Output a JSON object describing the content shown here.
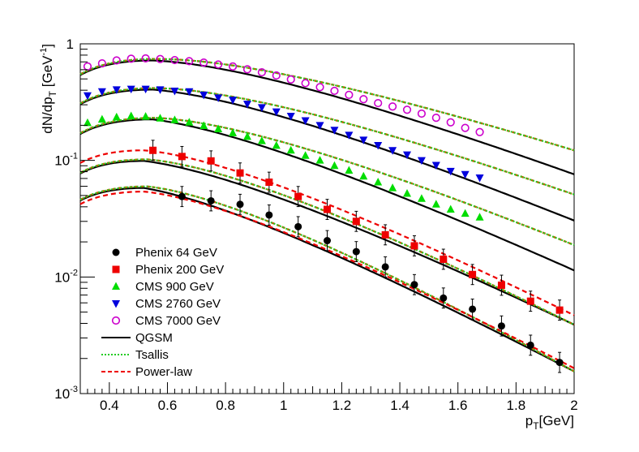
{
  "chart_data": {
    "type": "scatter",
    "title": "",
    "xlabel_main": "p",
    "xlabel_sub": "T",
    "xlabel_unit": "[GeV]",
    "ylabel_main": "dN/dp",
    "ylabel_sub": "T",
    "ylabel_unit": " [GeV",
    "ylabel_unit_exp": "-1",
    "ylabel_unit_close": "]",
    "xlim": [
      0.3,
      2.0
    ],
    "ylim": [
      0.001,
      1.0
    ],
    "yscale": "log",
    "x_ticks": [
      "0.4",
      "0.6",
      "0.8",
      "1",
      "1.2",
      "1.4",
      "1.6",
      "1.8",
      "2"
    ],
    "y_ticks": [
      {
        "base": "10",
        "exp": "-3"
      },
      {
        "base": "10",
        "exp": "-2"
      },
      {
        "base": "10",
        "exp": "-1"
      },
      {
        "base": "1",
        "exp": ""
      }
    ],
    "legend": [
      "Phenix 64 GeV",
      "Phenix 200 GeV",
      "CMS 900 GeV",
      "CMS 2760 GeV",
      "CMS 7000 GeV",
      "QGSM",
      "Tsallis",
      "Power-law"
    ],
    "legend_position": "lower-left",
    "series": [
      {
        "name": "Phenix 64 GeV",
        "marker": "circle",
        "color": "#000000",
        "x": [
          0.65,
          0.75,
          0.85,
          0.95,
          1.05,
          1.15,
          1.25,
          1.35,
          1.45,
          1.55,
          1.65,
          1.75,
          1.85,
          1.95
        ],
        "y": [
          0.049,
          0.045,
          0.042,
          0.034,
          0.027,
          0.0205,
          0.0165,
          0.0122,
          0.0086,
          0.0066,
          0.0053,
          0.0038,
          0.0026,
          0.00185
        ]
      },
      {
        "name": "Phenix 200 GeV",
        "marker": "square",
        "color": "#ee0000",
        "x": [
          0.55,
          0.65,
          0.75,
          0.85,
          0.95,
          1.05,
          1.15,
          1.25,
          1.35,
          1.45,
          1.55,
          1.65,
          1.75,
          1.85,
          1.95
        ],
        "y": [
          0.122,
          0.108,
          0.099,
          0.078,
          0.065,
          0.049,
          0.038,
          0.03,
          0.023,
          0.0185,
          0.0142,
          0.0105,
          0.0085,
          0.0062,
          0.0052
        ]
      },
      {
        "name": "CMS 900 GeV",
        "marker": "triangle-up",
        "color": "#00dd00",
        "x": [
          0.325,
          0.375,
          0.425,
          0.475,
          0.525,
          0.575,
          0.625,
          0.675,
          0.725,
          0.775,
          0.825,
          0.875,
          0.925,
          0.975,
          1.025,
          1.075,
          1.125,
          1.175,
          1.225,
          1.275,
          1.325,
          1.375,
          1.425,
          1.475,
          1.525,
          1.575,
          1.625,
          1.675
        ],
        "y": [
          0.21,
          0.225,
          0.235,
          0.24,
          0.238,
          0.23,
          0.222,
          0.212,
          0.198,
          0.186,
          0.172,
          0.16,
          0.147,
          0.134,
          0.122,
          0.11,
          0.1,
          0.09,
          0.082,
          0.073,
          0.065,
          0.058,
          0.052,
          0.047,
          0.042,
          0.038,
          0.035,
          0.0325
        ]
      },
      {
        "name": "CMS 2760 GeV",
        "marker": "triangle-down",
        "color": "#0000dd",
        "x": [
          0.325,
          0.375,
          0.425,
          0.475,
          0.525,
          0.575,
          0.625,
          0.675,
          0.725,
          0.775,
          0.825,
          0.875,
          0.925,
          0.975,
          1.025,
          1.075,
          1.125,
          1.175,
          1.225,
          1.275,
          1.325,
          1.375,
          1.425,
          1.475,
          1.525,
          1.575,
          1.625,
          1.675
        ],
        "y": [
          0.36,
          0.39,
          0.405,
          0.41,
          0.41,
          0.405,
          0.395,
          0.39,
          0.365,
          0.345,
          0.33,
          0.305,
          0.285,
          0.262,
          0.24,
          0.22,
          0.2,
          0.182,
          0.165,
          0.15,
          0.135,
          0.122,
          0.112,
          0.1,
          0.091,
          0.081,
          0.076,
          0.071
        ]
      },
      {
        "name": "CMS 7000 GeV",
        "marker": "open-circle",
        "color": "#cc00cc",
        "x": [
          0.325,
          0.375,
          0.425,
          0.475,
          0.525,
          0.575,
          0.625,
          0.675,
          0.725,
          0.775,
          0.825,
          0.875,
          0.925,
          0.975,
          1.025,
          1.075,
          1.125,
          1.175,
          1.225,
          1.275,
          1.325,
          1.375,
          1.425,
          1.475,
          1.525,
          1.575,
          1.625,
          1.675
        ],
        "y": [
          0.64,
          0.68,
          0.72,
          0.745,
          0.75,
          0.74,
          0.725,
          0.71,
          0.69,
          0.665,
          0.64,
          0.605,
          0.57,
          0.535,
          0.495,
          0.46,
          0.425,
          0.395,
          0.365,
          0.335,
          0.31,
          0.29,
          0.272,
          0.252,
          0.232,
          0.212,
          0.19,
          0.175
        ]
      }
    ],
    "fits": {
      "Phenix 64 GeV": {
        "peak_x": 0.52,
        "peak_y": 0.058,
        "y_at_2": 0.00155
      },
      "Phenix 200 GeV": {
        "peak_x": 0.52,
        "peak_y": 0.099,
        "y_at_2": 0.0039
      },
      "CMS 900 GeV": {
        "peak_x": 0.55,
        "peak_y": 0.225,
        "y_at_2": 0.0114,
        "tsallis_y_at_2": 0.0188
      },
      "CMS 2760 GeV": {
        "peak_x": 0.55,
        "peak_y": 0.405,
        "y_at_2": 0.0305,
        "tsallis_y_at_2": 0.051
      },
      "CMS 7000 GeV": {
        "peak_x": 0.55,
        "peak_y": 0.72,
        "y_at_2": 0.076,
        "tsallis_y_at_2": 0.122
      }
    },
    "powerlaw_200_peak_y": 0.122,
    "powerlaw_64_peak_y": 0.054
  }
}
